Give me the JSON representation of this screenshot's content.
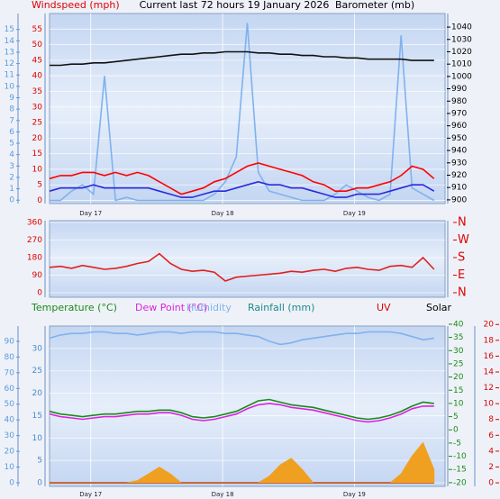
{
  "chart_data": [
    {
      "type": "line",
      "title": "Current last 72 hours 19 January 2026",
      "ylabel": "Windspeed (mph)",
      "y2label": "Barometer (mb)",
      "x": [
        0,
        2,
        4,
        6,
        8,
        10,
        12,
        14,
        16,
        18,
        20,
        22,
        24,
        26,
        28,
        30,
        32,
        34,
        36,
        38,
        40,
        42,
        44,
        46,
        48,
        50,
        52,
        54,
        56,
        58,
        60,
        62,
        64,
        66,
        68,
        70
      ],
      "xlim": [
        0,
        72
      ],
      "xticks": [
        {
          "value": 7.5,
          "label": "Day 17"
        },
        {
          "value": 31.5,
          "label": "Day 18"
        },
        {
          "value": 55.5,
          "label": "Day 19"
        }
      ],
      "ylim": [
        -1,
        60
      ],
      "yticks": [
        0,
        5,
        10,
        15,
        20,
        25,
        30,
        35,
        40,
        45,
        50,
        55
      ],
      "y3lim": [
        -0.3,
        16.4
      ],
      "y3ticks": [
        0,
        1,
        2,
        3,
        4,
        5,
        6,
        7,
        8,
        9,
        10,
        11,
        12,
        13,
        14,
        15
      ],
      "y2lim": [
        897,
        1051
      ],
      "y2ticks": [
        900,
        910,
        920,
        930,
        940,
        950,
        960,
        970,
        980,
        990,
        1000,
        1010,
        1020,
        1030,
        1040
      ],
      "grid": true,
      "series": [
        {
          "color": "#7fb2ee",
          "values": [
            0,
            0,
            3,
            5,
            2,
            40,
            0,
            1,
            0,
            0,
            0,
            0,
            0,
            0,
            0,
            2,
            6,
            14,
            57,
            9,
            3,
            2,
            1,
            0,
            0,
            0,
            2,
            5,
            3,
            1,
            0,
            2,
            53,
            4,
            2,
            0
          ]
        },
        {
          "color": "#ff0000",
          "values": [
            7,
            8,
            8,
            9,
            9,
            8,
            9,
            8,
            9,
            8,
            6,
            4,
            2,
            3,
            4,
            6,
            7,
            9,
            11,
            12,
            11,
            10,
            9,
            8,
            6,
            5,
            3,
            3,
            4,
            4,
            5,
            6,
            8,
            11,
            10,
            7
          ]
        },
        {
          "color": "#2a2adf",
          "values": [
            3,
            4,
            4,
            4,
            5,
            4,
            4,
            4,
            4,
            4,
            3,
            2,
            1,
            1,
            2,
            3,
            3,
            4,
            5,
            6,
            5,
            5,
            4,
            4,
            3,
            2,
            1,
            1,
            2,
            2,
            2,
            3,
            4,
            5,
            5,
            3
          ]
        },
        {
          "color": "#111111",
          "axis": "y2",
          "values": [
            1009,
            1009,
            1010,
            1010,
            1011,
            1011,
            1012,
            1013,
            1014,
            1015,
            1016,
            1017,
            1018,
            1018,
            1019,
            1019,
            1020,
            1020,
            1020,
            1019,
            1019,
            1018,
            1018,
            1017,
            1017,
            1016,
            1016,
            1015,
            1015,
            1014,
            1014,
            1014,
            1014,
            1013,
            1013,
            1013
          ]
        }
      ]
    },
    {
      "type": "line",
      "x": [
        0,
        2,
        4,
        6,
        8,
        10,
        12,
        14,
        16,
        18,
        20,
        22,
        24,
        26,
        28,
        30,
        32,
        34,
        36,
        38,
        40,
        42,
        44,
        46,
        48,
        50,
        52,
        54,
        56,
        58,
        60,
        62,
        64,
        66,
        68,
        70
      ],
      "xlim": [
        0,
        72
      ],
      "ylim": [
        -23,
        369
      ],
      "yticks": [
        0,
        90,
        180,
        270,
        360
      ],
      "y2lim": [
        -23,
        369
      ],
      "y2ticks": [
        {
          "value": 0,
          "label": "N"
        },
        {
          "value": 90,
          "label": "E"
        },
        {
          "value": 180,
          "label": "S"
        },
        {
          "value": 270,
          "label": "W"
        },
        {
          "value": 360,
          "label": "N"
        }
      ],
      "grid": true,
      "series": [
        {
          "color": "#e02020",
          "values": [
            130,
            135,
            125,
            140,
            130,
            120,
            125,
            135,
            150,
            160,
            200,
            150,
            120,
            110,
            115,
            105,
            60,
            80,
            85,
            90,
            95,
            100,
            110,
            105,
            115,
            120,
            110,
            125,
            130,
            120,
            115,
            135,
            140,
            130,
            180,
            120
          ]
        }
      ]
    },
    {
      "type": "line",
      "x": [
        0,
        2,
        4,
        6,
        8,
        10,
        12,
        14,
        16,
        18,
        20,
        22,
        24,
        26,
        28,
        30,
        32,
        34,
        36,
        38,
        40,
        42,
        44,
        46,
        48,
        50,
        52,
        54,
        56,
        58,
        60,
        62,
        64,
        66,
        68,
        70
      ],
      "xlim": [
        0,
        72
      ],
      "xticks": [
        {
          "value": 7.5,
          "label": "Day 17"
        },
        {
          "value": 31.5,
          "label": "Day 18"
        },
        {
          "value": 55.5,
          "label": "Day 19"
        }
      ],
      "ylim": [
        -0.8,
        35
      ],
      "yticks": [
        0,
        5,
        10,
        15,
        20,
        25,
        30
      ],
      "y3lim": [
        -2.3,
        99.7
      ],
      "y3ticks": [
        0,
        10,
        20,
        30,
        40,
        50,
        60,
        70,
        80,
        90
      ],
      "y2lim": [
        -21.4,
        39.3
      ],
      "y2ticks": [
        -20,
        -15,
        -10,
        -5,
        0,
        5,
        10,
        15,
        20,
        25,
        30,
        35,
        40
      ],
      "y4lim": [
        -0.45,
        19.8
      ],
      "y4ticks": [
        0,
        2,
        4,
        6,
        8,
        10,
        12,
        14,
        16,
        18,
        20
      ],
      "grid": true,
      "series": [
        {
          "name": "Temperature (°C)",
          "color": "#1a8a1a",
          "axis": "y2",
          "values": [
            7,
            6,
            5.5,
            5,
            5.5,
            6,
            6,
            6.5,
            7,
            7,
            7.5,
            7.5,
            6.5,
            5,
            4.5,
            5,
            6,
            7,
            9,
            11,
            11.5,
            10.5,
            9.5,
            9,
            8.5,
            7.5,
            6.5,
            5.5,
            4.5,
            4,
            4.5,
            5.5,
            7,
            9,
            10.5,
            10
          ]
        },
        {
          "name": "Dew Point (°C)",
          "color": "#dd22dd",
          "axis": "y2",
          "values": [
            6,
            5,
            4.5,
            4,
            4.5,
            5,
            5,
            5.5,
            6,
            6,
            6.5,
            6.5,
            5.5,
            4,
            3.5,
            4,
            5,
            6,
            8,
            9.5,
            10,
            9.5,
            8.5,
            8,
            7.5,
            6.5,
            5.5,
            4.5,
            3.5,
            3,
            3.5,
            4.5,
            6,
            8,
            9,
            9
          ]
        },
        {
          "name": "Humidity",
          "color": "#7fb2ee",
          "axis": "y3",
          "values": [
            92,
            94,
            95,
            95,
            96,
            96,
            95,
            95,
            94,
            95,
            96,
            96,
            95,
            96,
            96,
            96,
            95,
            95,
            94,
            93,
            90,
            88,
            89,
            91,
            92,
            93,
            94,
            95,
            95,
            96,
            96,
            96,
            95,
            93,
            91,
            92
          ]
        },
        {
          "name": "Rainfall (mm)",
          "color": "#1a8a8a",
          "values": [
            0,
            0,
            0,
            0,
            0,
            0,
            0,
            0,
            0,
            0,
            0,
            0,
            0,
            0,
            0,
            0,
            0,
            0,
            0,
            0,
            0,
            0,
            0,
            0,
            0,
            0,
            0,
            0,
            0,
            0,
            0,
            0,
            0,
            0,
            0,
            0
          ]
        },
        {
          "name": "UV",
          "color": "#dd0000",
          "axis": "y4",
          "values": [
            0,
            0,
            0,
            0,
            0,
            0,
            0,
            0,
            0,
            0,
            0,
            0,
            0,
            0,
            0,
            0,
            0,
            0,
            0,
            0,
            0,
            0,
            0,
            0,
            0,
            0,
            0,
            0,
            0,
            0,
            0,
            0,
            0,
            0,
            0,
            0
          ]
        },
        {
          "name": "Solar",
          "color": "#f0a020",
          "fill": true,
          "values": [
            0,
            0,
            0,
            0,
            0,
            0,
            0,
            0,
            0.5,
            2,
            3.5,
            2,
            0,
            0,
            0,
            0,
            0,
            0,
            0,
            0,
            1.5,
            4,
            5.5,
            3,
            0,
            0,
            0,
            0,
            0,
            0,
            0,
            0,
            2,
            6,
            9,
            3
          ]
        }
      ]
    }
  ]
}
